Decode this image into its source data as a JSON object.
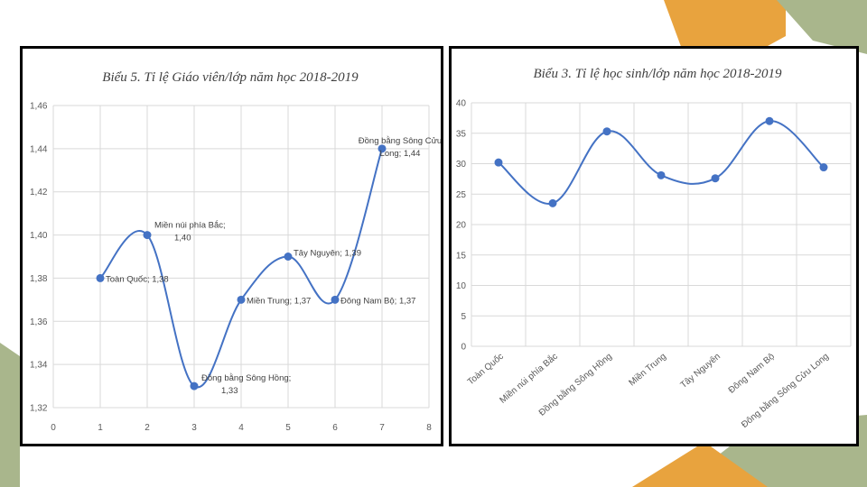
{
  "colors": {
    "series": "#4472C4",
    "deco_orange": "#E8A33E",
    "deco_green": "#A9B68C",
    "grid": "#D9D9D9"
  },
  "chart_data": [
    {
      "type": "line",
      "title": "Biểu 5. Tỉ lệ Giáo viên/lớp năm học 2018-2019",
      "smooth": true,
      "grid": true,
      "xlim": [
        0,
        8
      ],
      "ylim": [
        1.32,
        1.46
      ],
      "x_ticks": [
        "0",
        "1",
        "2",
        "3",
        "4",
        "5",
        "6",
        "7",
        "8"
      ],
      "y_ticks": [
        "1,32",
        "1,34",
        "1,36",
        "1,38",
        "1,40",
        "1,42",
        "1,44",
        "1,46"
      ],
      "points": [
        {
          "x": 1,
          "y": 1.38,
          "label": [
            "Toàn Quốc; 1,38"
          ]
        },
        {
          "x": 2,
          "y": 1.4,
          "label": [
            "Miền núi phía Bắc;",
            "1,40"
          ]
        },
        {
          "x": 3,
          "y": 1.33,
          "label": [
            "Đồng bằng Sông Hồng;",
            "1,33"
          ]
        },
        {
          "x": 4,
          "y": 1.37,
          "label": [
            "Miền Trung; 1,37"
          ]
        },
        {
          "x": 5,
          "y": 1.39,
          "label": [
            "Tây Nguyên; 1,39"
          ]
        },
        {
          "x": 6,
          "y": 1.37,
          "label": [
            "Đông Nam Bộ; 1,37"
          ]
        },
        {
          "x": 7,
          "y": 1.44,
          "label": [
            "Đồng bằng Sông Cửu",
            "Long; 1,44"
          ]
        }
      ]
    },
    {
      "type": "line",
      "title": "Biểu 3. Tỉ lệ học sinh/lớp năm học 2018-2019",
      "smooth": true,
      "grid": true,
      "ylim": [
        0,
        40
      ],
      "y_ticks": [
        "0",
        "5",
        "10",
        "15",
        "20",
        "25",
        "30",
        "35",
        "40"
      ],
      "categories": [
        "Toàn Quốc",
        "Miền núi phía Bắc",
        "Đồng bằng Sông Hồng",
        "Miền Trung",
        "Tây Nguyên",
        "Đông Nam Bộ",
        "Đông bằng Sông Cửu Long"
      ],
      "values": [
        30.2,
        23.5,
        35.3,
        28.1,
        27.6,
        37.0,
        29.4
      ]
    }
  ]
}
